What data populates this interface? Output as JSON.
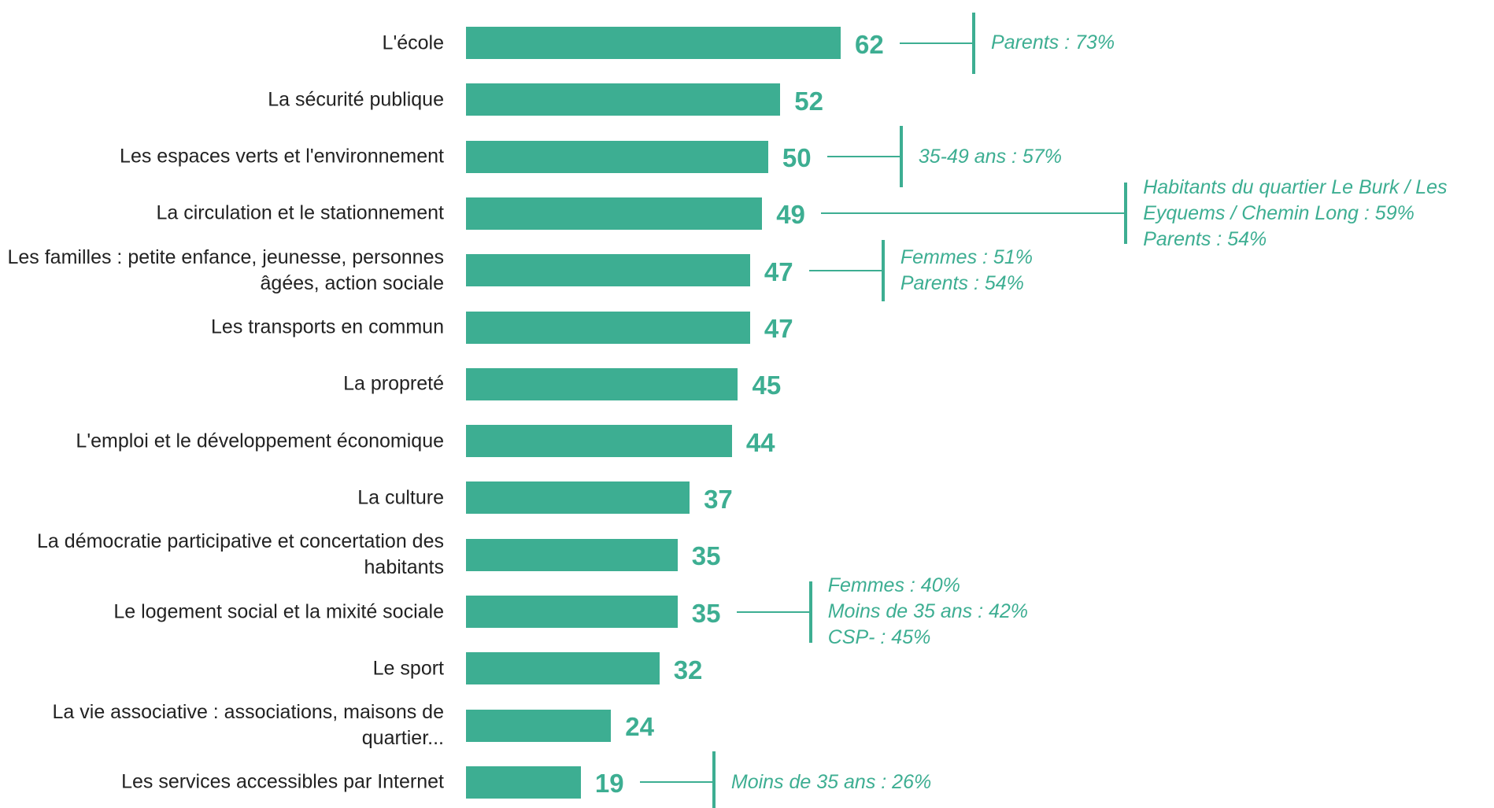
{
  "chart_data": {
    "type": "bar",
    "orientation": "horizontal",
    "color": "#3dae92",
    "categories": [
      "L'école",
      "La sécurité publique",
      "Les espaces verts et l'environnement",
      "La circulation et le stationnement",
      "Les familles : petite enfance, jeunesse, personnes âgées, action sociale",
      "Les transports en commun",
      "La propreté",
      "L'emploi et le développement économique",
      "La culture",
      "La démocratie participative et concertation des habitants",
      "Le logement social et la mixité sociale",
      "Le sport",
      "La vie associative : associations, maisons de quartier...",
      "Les services accessibles par Internet"
    ],
    "values": [
      62,
      52,
      50,
      49,
      47,
      47,
      45,
      44,
      37,
      35,
      35,
      32,
      24,
      19
    ],
    "annotations": [
      [
        "Parents : 73%"
      ],
      null,
      [
        "35-49 ans : 57%"
      ],
      [
        "Habitants du quartier Le Burk / Les",
        "Eyquems / Chemin Long : 59%",
        "Parents : 54%"
      ],
      [
        "Femmes : 51%",
        "Parents : 54%"
      ],
      null,
      null,
      null,
      null,
      null,
      [
        "Femmes : 40%",
        "Moins de 35 ans : 42%",
        "CSP- : 45%"
      ],
      null,
      null,
      [
        "Moins de 35 ans : 26%"
      ]
    ]
  }
}
